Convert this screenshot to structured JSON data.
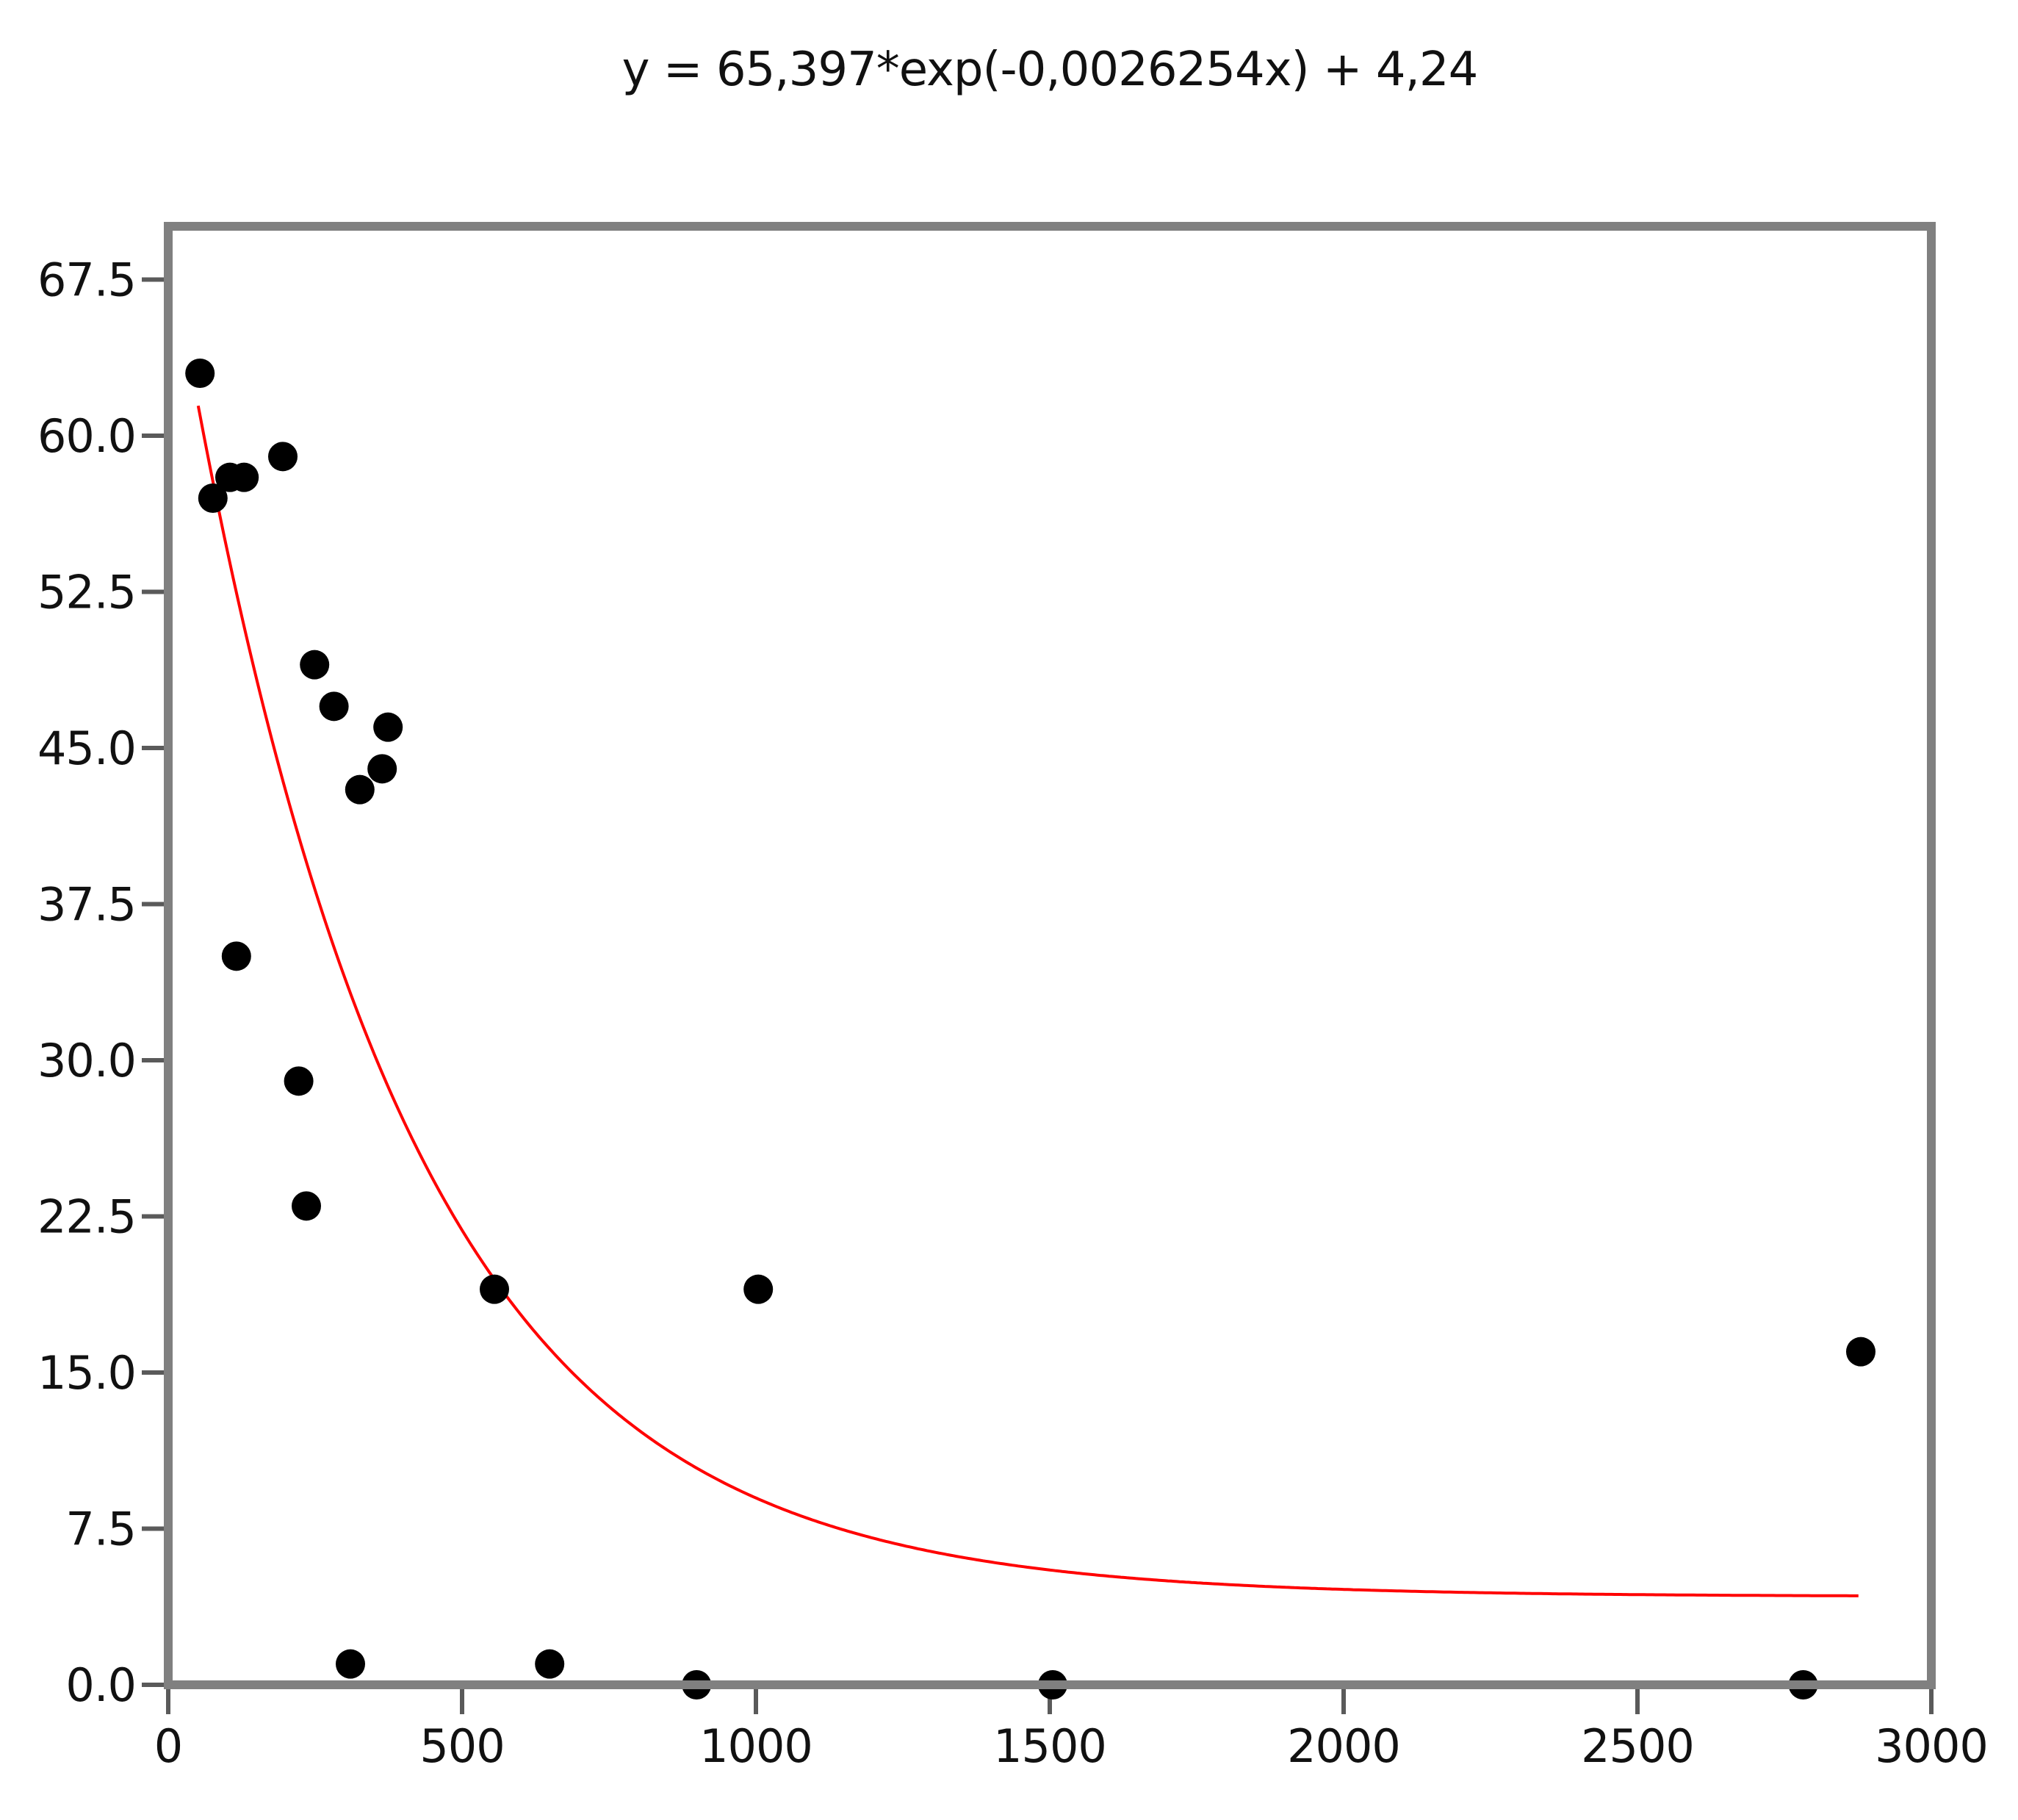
{
  "chart_data": {
    "type": "scatter",
    "title": "y = 65,397*exp(-0,0026254x) + 4,24",
    "xlabel": "",
    "ylabel": "",
    "xlim": [
      0,
      3000
    ],
    "ylim": [
      0,
      67.5
    ],
    "x_ticks": [
      0,
      500,
      1000,
      1500,
      2000,
      2500,
      3000
    ],
    "x_tick_labels": [
      "0",
      "500",
      "1000",
      "1500",
      "2000",
      "2500",
      "3000"
    ],
    "y_ticks": [
      0,
      7.5,
      15,
      22.5,
      30,
      37.5,
      45,
      52.5,
      60,
      67.5
    ],
    "y_tick_labels": [
      "0.0",
      "7.5",
      "15.0",
      "22.5",
      "30.0",
      "37.5",
      "45.0",
      "52.5",
      "60.0",
      "67.5"
    ],
    "grid": false,
    "legend": null,
    "series": [
      {
        "name": "observations",
        "kind": "scatter",
        "color": "#000000",
        "points": [
          {
            "x": 54,
            "y": 63
          },
          {
            "x": 76,
            "y": 57
          },
          {
            "x": 105,
            "y": 58
          },
          {
            "x": 129,
            "y": 58
          },
          {
            "x": 195,
            "y": 59
          },
          {
            "x": 116,
            "y": 35
          },
          {
            "x": 222,
            "y": 29
          },
          {
            "x": 235,
            "y": 23
          },
          {
            "x": 249,
            "y": 49
          },
          {
            "x": 282,
            "y": 47
          },
          {
            "x": 326,
            "y": 43
          },
          {
            "x": 364,
            "y": 44
          },
          {
            "x": 374,
            "y": 46
          },
          {
            "x": 310,
            "y": 1
          },
          {
            "x": 555,
            "y": 19
          },
          {
            "x": 649,
            "y": 1
          },
          {
            "x": 899,
            "y": 0
          },
          {
            "x": 1004,
            "y": 19
          },
          {
            "x": 1505,
            "y": 0
          },
          {
            "x": 2782,
            "y": 0
          },
          {
            "x": 2880,
            "y": 16
          }
        ]
      },
      {
        "name": "exponential fit",
        "kind": "line",
        "color": "#ff0000",
        "formula": {
          "a": 65.397,
          "b": -0.0026254,
          "c": 4.24
        },
        "x_range": [
          51,
          2880
        ]
      }
    ]
  },
  "colors": {
    "frame": "#808080",
    "tick": "#5a5a5a",
    "fit_line": "#ff0000",
    "points": "#000000"
  }
}
